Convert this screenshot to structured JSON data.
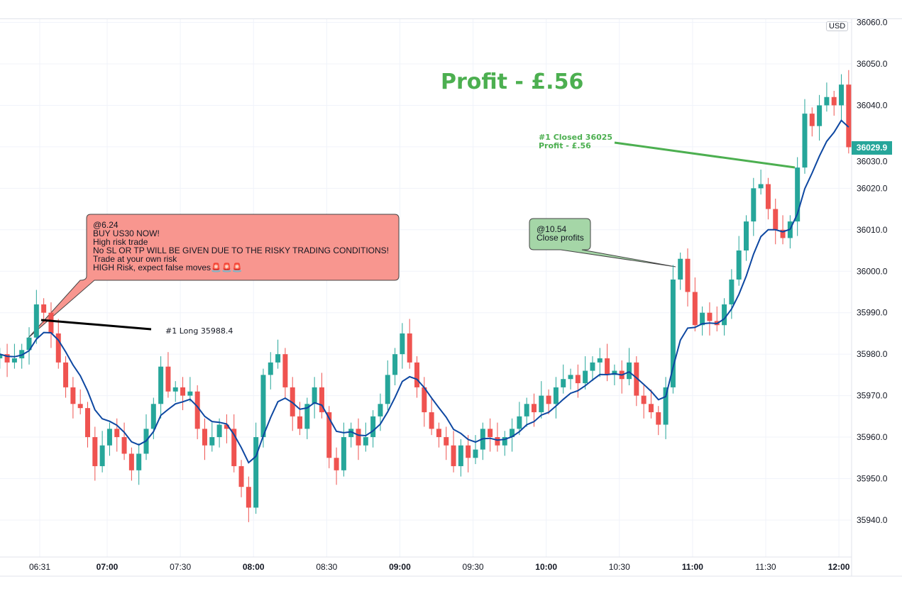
{
  "chart_data": {
    "type": "candlestick",
    "symbol": "US30",
    "currency": "USD",
    "interval_minutes": 3,
    "start_time": "06:16",
    "closes": [
      35980,
      35978,
      35979,
      35981,
      35984,
      35992,
      35990,
      35985,
      35978,
      35972,
      35968,
      35967,
      35960,
      35953,
      35958,
      35962,
      35960,
      35956,
      35952,
      35956,
      35962,
      35968,
      35977,
      35971,
      35972,
      35970,
      35971,
      35962,
      35958,
      35960,
      35963,
      35962,
      35953,
      35948,
      35943,
      35960,
      35975,
      35978,
      35980,
      35972,
      35965,
      35962,
      35968,
      35972,
      35966,
      35955,
      35952,
      35960,
      35962,
      35958,
      35960,
      35965,
      35968,
      35975,
      35980,
      35985,
      35978,
      35972,
      35966,
      35962,
      35960,
      35958,
      35953,
      35958,
      35955,
      35957,
      35962,
      35960,
      35958,
      35960,
      35962,
      35965,
      35968,
      35966,
      35970,
      35968,
      35972,
      35974,
      35975,
      35973,
      35976,
      35978,
      35979,
      35975,
      35976,
      35974,
      35978,
      35970,
      35968,
      35966,
      35963,
      35972,
      35998,
      36003,
      35995,
      35987,
      35990,
      35988,
      35987,
      35992,
      35998,
      36005,
      36012,
      36020,
      36021,
      36015,
      36010,
      36008,
      36012,
      36025,
      36038,
      36035,
      36040,
      36042,
      36040,
      36045,
      36029.9
    ],
    "moving_average": "EMA",
    "y_ticks": [
      "36060.0",
      "36050.0",
      "36040.0",
      "36030.0",
      "36020.0",
      "36010.0",
      "36000.0",
      "35990.0",
      "35980.0",
      "35970.0",
      "35960.0",
      "35950.0",
      "35940.0"
    ],
    "ylim": [
      35930,
      36062
    ],
    "x_ticks": [
      {
        "label": "06:31",
        "bold": false
      },
      {
        "label": "07:00",
        "bold": true
      },
      {
        "label": "07:30",
        "bold": false
      },
      {
        "label": "08:00",
        "bold": true
      },
      {
        "label": "08:30",
        "bold": false
      },
      {
        "label": "09:00",
        "bold": true
      },
      {
        "label": "09:30",
        "bold": false
      },
      {
        "label": "10:00",
        "bold": true
      },
      {
        "label": "10:30",
        "bold": false
      },
      {
        "label": "11:00",
        "bold": true
      },
      {
        "label": "11:30",
        "bold": false
      },
      {
        "label": "12:00",
        "bold": true
      }
    ],
    "last_price": "36029.9",
    "colors": {
      "up": "#26a69a",
      "down": "#ef5350",
      "ma": "#0d47a1",
      "profit": "#4caf50"
    }
  },
  "annotations": {
    "profit_title": "Profit - £.56",
    "closed_note_line1": "#1 Closed 36025",
    "closed_note_line2": "Profit - £.56",
    "long_label": "#1 Long 35988.4",
    "buy_callout": "@6.24\nBUY US30 NOW!\nHigh risk trade\nNo SL OR TP WILL BE GIVEN DUE TO THE RISKY TRADING CONDITIONS!\nTrade at your own risk\nHIGH Risk, expect false moves🚨🚨🚨",
    "close_callout": "@10.54\nClose profits"
  },
  "axis": {
    "currency_badge": "USD"
  }
}
